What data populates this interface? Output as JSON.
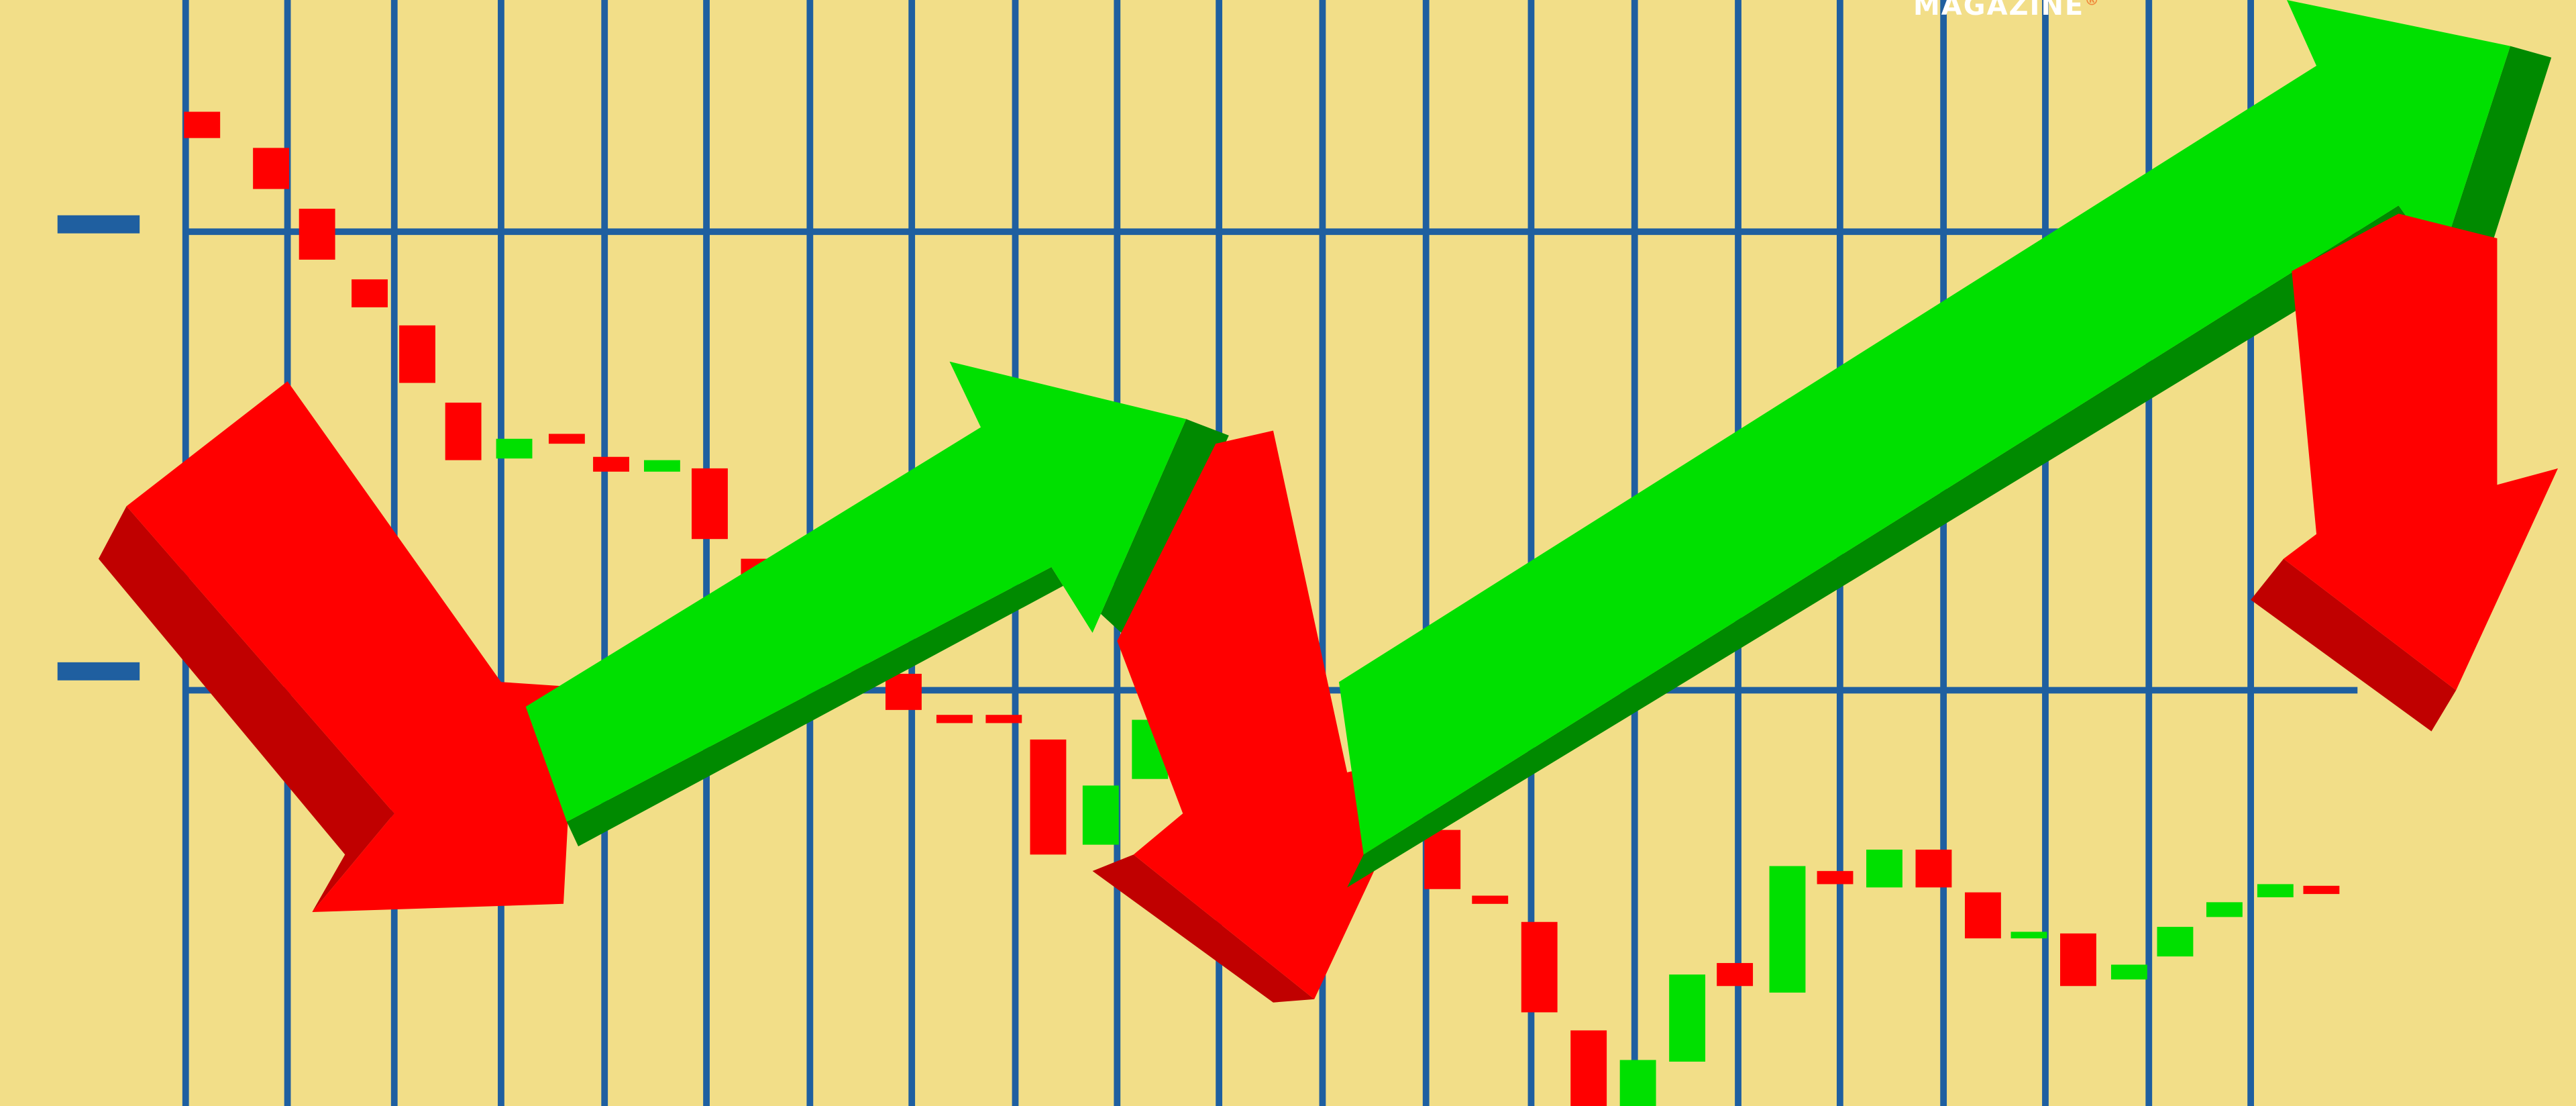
{
  "brand": {
    "text": "MAGAZINE",
    "mark": "®"
  },
  "colors": {
    "background": "#f2de88",
    "grid": "#1f5fa0",
    "up": "#00e000",
    "up_shade": "#008a00",
    "down": "#ff0000",
    "down_shade": "#c00000"
  },
  "candles": [
    {
      "dir": "down"
    },
    {
      "dir": "down"
    },
    {
      "dir": "down"
    },
    {
      "dir": "down"
    },
    {
      "dir": "down"
    },
    {
      "dir": "down"
    },
    {
      "dir": "up"
    },
    {
      "dir": "down"
    },
    {
      "dir": "down"
    },
    {
      "dir": "up"
    },
    {
      "dir": "down"
    },
    {
      "dir": "down"
    },
    {
      "dir": "down"
    },
    {
      "dir": "down"
    },
    {
      "dir": "down"
    },
    {
      "dir": "down"
    },
    {
      "dir": "down"
    },
    {
      "dir": "down"
    },
    {
      "dir": "up"
    },
    {
      "dir": "up"
    },
    {
      "dir": "up"
    },
    {
      "dir": "down"
    },
    {
      "dir": "down"
    },
    {
      "dir": "down"
    },
    {
      "dir": "down"
    },
    {
      "dir": "down"
    },
    {
      "dir": "up"
    },
    {
      "dir": "up"
    },
    {
      "dir": "down"
    },
    {
      "dir": "up"
    },
    {
      "dir": "down"
    },
    {
      "dir": "up"
    },
    {
      "dir": "down"
    },
    {
      "dir": "down"
    },
    {
      "dir": "up"
    },
    {
      "dir": "down"
    },
    {
      "dir": "up"
    },
    {
      "dir": "up"
    },
    {
      "dir": "up"
    },
    {
      "dir": "up"
    },
    {
      "dir": "down"
    }
  ],
  "arrows": [
    {
      "dir": "down"
    },
    {
      "dir": "up"
    },
    {
      "dir": "down"
    },
    {
      "dir": "up"
    },
    {
      "dir": "down"
    }
  ]
}
